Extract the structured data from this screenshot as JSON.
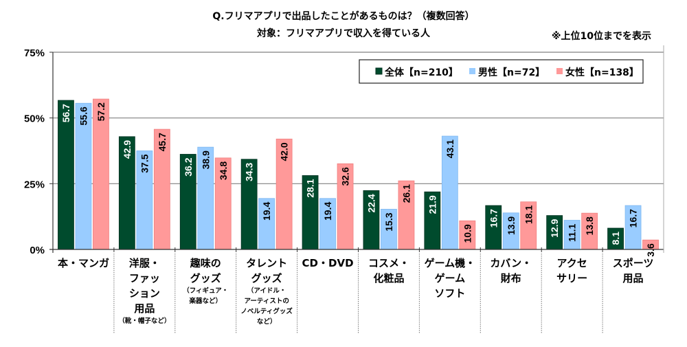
{
  "chart_data": {
    "type": "bar",
    "title": "Q.フリマアプリで出品したことがあるものは？（複数回答）",
    "subtitle": "対象：フリマアプリで収入を得ている人",
    "note": "※上位10位までを表示",
    "xlabel": "",
    "ylabel": "",
    "ylim": [
      0,
      75
    ],
    "yticks": [
      0,
      25,
      50,
      75
    ],
    "ytick_labels": [
      "0%",
      "25%",
      "50%",
      "75%"
    ],
    "grid": true,
    "legend_position": "top-right",
    "categories": [
      {
        "lines": [
          "本・マンガ"
        ],
        "sub": []
      },
      {
        "lines": [
          "洋服・",
          "ファッ",
          "ション",
          "用品"
        ],
        "sub": [
          "（靴・帽子など）"
        ]
      },
      {
        "lines": [
          "趣味の",
          "グッズ"
        ],
        "sub": [
          "（フィギュア・",
          "楽器など）"
        ]
      },
      {
        "lines": [
          "タレント",
          "グッズ"
        ],
        "sub": [
          "（アイドル・",
          "アーティストの",
          "ノベルティグッズ",
          "など）"
        ]
      },
      {
        "lines": [
          "CD・DVD"
        ],
        "sub": []
      },
      {
        "lines": [
          "コスメ・",
          "化粧品"
        ],
        "sub": []
      },
      {
        "lines": [
          "ゲーム機・",
          "ゲーム",
          "ソフト"
        ],
        "sub": []
      },
      {
        "lines": [
          "カバン・",
          "財布"
        ],
        "sub": []
      },
      {
        "lines": [
          "アクセ",
          "サリー"
        ],
        "sub": []
      },
      {
        "lines": [
          "スポーツ",
          "用品"
        ],
        "sub": []
      }
    ],
    "series": [
      {
        "name": "全体【n=210】",
        "color": "#004B2D",
        "label_color": "#ffffff",
        "values": [
          56.7,
          42.9,
          36.2,
          34.3,
          28.1,
          22.4,
          21.9,
          16.7,
          12.9,
          8.1
        ]
      },
      {
        "name": "男性【n=72】",
        "color": "#99CCFF",
        "label_color": "#000000",
        "values": [
          55.6,
          37.5,
          38.9,
          19.4,
          19.4,
          15.3,
          43.1,
          13.9,
          11.1,
          16.7
        ]
      },
      {
        "name": "女性【n=138】",
        "color": "#FF9999",
        "label_color": "#000000",
        "values": [
          57.2,
          45.7,
          34.8,
          42.0,
          32.6,
          26.1,
          10.9,
          18.1,
          13.8,
          3.6
        ]
      }
    ]
  }
}
